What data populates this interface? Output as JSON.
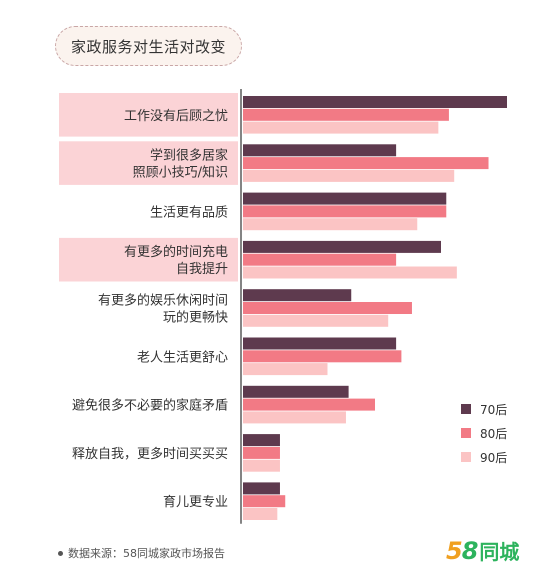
{
  "title": "家政服务对生活对改变",
  "chart_data": {
    "type": "bar",
    "orientation": "horizontal",
    "categories": [
      [
        "工作没有后顾之忧"
      ],
      [
        "学到很多居家",
        "照顾小技巧/知识"
      ],
      [
        "生活更有品质"
      ],
      [
        "有更多的时间充电",
        "自我提升"
      ],
      [
        "有更多的娱乐休闲时间",
        "玩的更畅快"
      ],
      [
        "老人生活更舒心"
      ],
      [
        "避免很多不必要的家庭矛盾"
      ],
      [
        "释放自我，更多时间买买买"
      ],
      [
        "育儿更专业"
      ]
    ],
    "highlighted": [
      true,
      true,
      false,
      true,
      false,
      false,
      false,
      false,
      false
    ],
    "series": [
      {
        "name": "70后",
        "color": "#5e3a4e",
        "values": [
          100,
          58,
          77,
          75,
          41,
          58,
          40,
          14,
          14
        ]
      },
      {
        "name": "80后",
        "color": "#f27a85",
        "values": [
          78,
          93,
          77,
          58,
          64,
          60,
          50,
          14,
          16
        ]
      },
      {
        "name": "90后",
        "color": "#fbc4c4",
        "values": [
          74,
          80,
          66,
          81,
          55,
          32,
          39,
          14,
          13
        ]
      }
    ],
    "legend_position": "bottom-right",
    "grid": false,
    "xlim": [
      0,
      100
    ]
  },
  "highlight_color": "#fbd3d6",
  "footer": {
    "source": "数据来源：58同城家政市场报告"
  },
  "logo": {
    "num_a": "5",
    "num_b": "8",
    "text": "同城"
  }
}
